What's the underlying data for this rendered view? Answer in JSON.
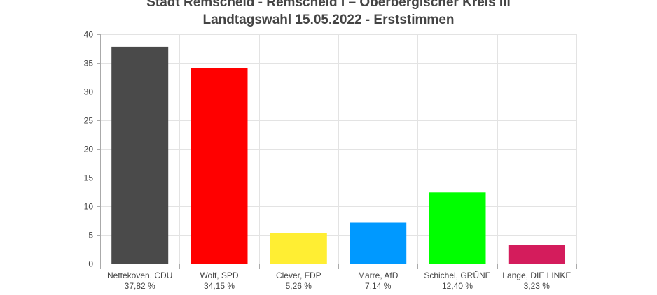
{
  "chart_data": {
    "type": "bar",
    "title": "Stadt Remscheid - Remscheid I – Oberbergischer Kreis III",
    "subtitle": "Landtagswahl 15.05.2022  - Erststimmen",
    "categories": [
      "Nettekoven, CDU",
      "Wolf, SPD",
      "Clever, FDP",
      "Marre, AfD",
      "Schichel, GRÜNE",
      "Lange, DIE LINKE"
    ],
    "values": [
      37.82,
      34.15,
      5.26,
      7.14,
      12.4,
      3.23
    ],
    "value_labels": [
      "37,82 %",
      "34,15 %",
      "5,26 %",
      "7,14 %",
      "12,40 %",
      "3,23 %"
    ],
    "colors": [
      "#4a4a4a",
      "#ff0000",
      "#ffee33",
      "#0099ff",
      "#00ff00",
      "#d41c5c"
    ],
    "yticks": [
      "0",
      "5",
      "10",
      "15",
      "20",
      "25",
      "30",
      "35",
      "40"
    ],
    "ylim": [
      0,
      40
    ],
    "xlabel": "",
    "ylabel": "",
    "grid": true,
    "legend": "none"
  }
}
